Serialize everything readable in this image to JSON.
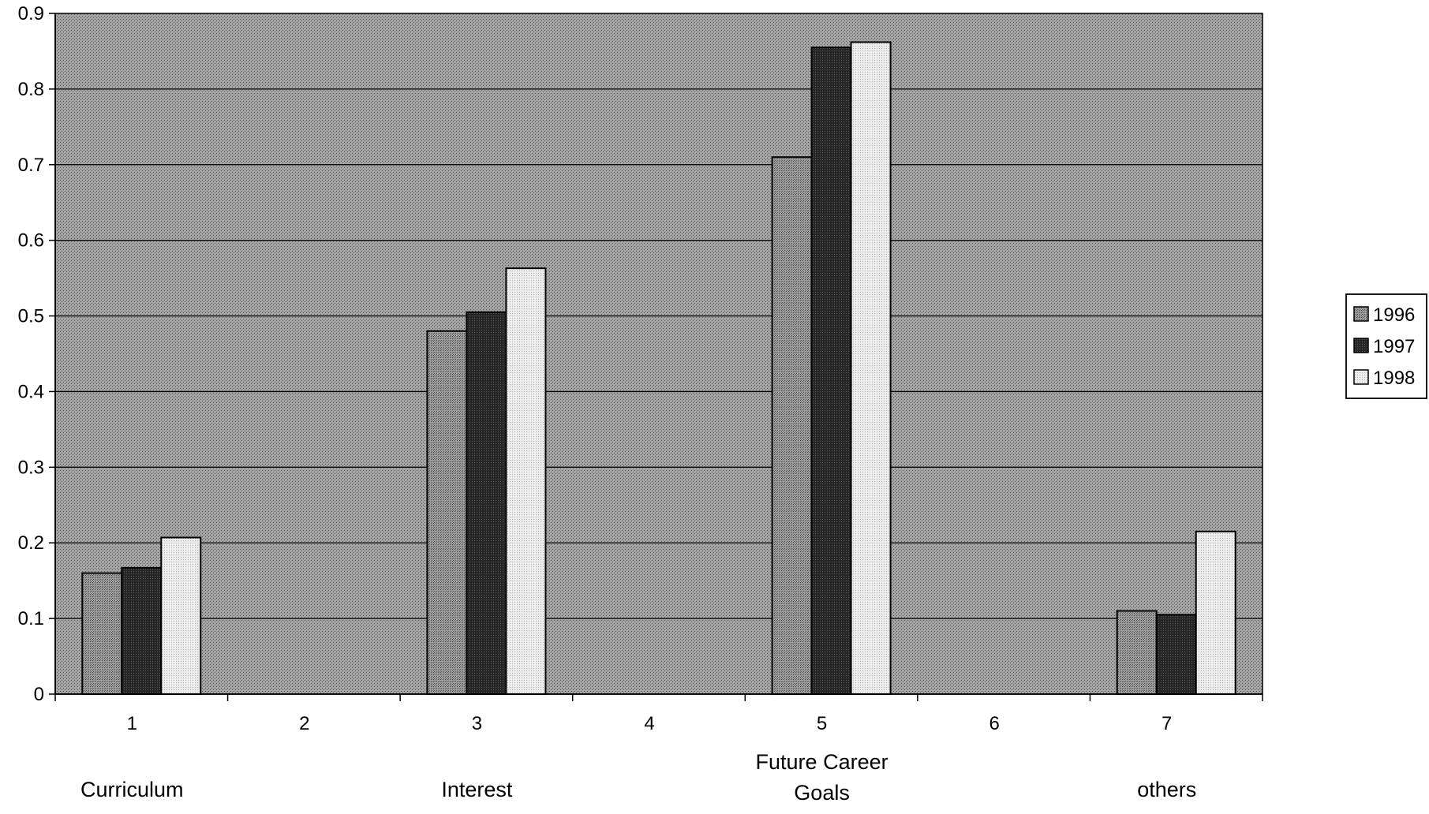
{
  "chart_data": {
    "type": "bar",
    "title": "",
    "xlabel": "",
    "ylabel": "",
    "categories": [
      "1",
      "2",
      "3",
      "4",
      "5",
      "6",
      "7"
    ],
    "category_labels": [
      "Curriculum",
      "",
      "Interest",
      "",
      "Future  Career\nGoals",
      "",
      "others"
    ],
    "ylim": [
      0,
      0.9
    ],
    "yticks": [
      "0",
      "0.1",
      "0.2",
      "0.3",
      "0.4",
      "0.5",
      "0.6",
      "0.7",
      "0.8",
      "0.9"
    ],
    "grid": true,
    "legend_position": "right",
    "series": [
      {
        "name": "1996",
        "values": [
          0.16,
          null,
          0.48,
          null,
          0.71,
          null,
          0.11
        ]
      },
      {
        "name": "1997",
        "values": [
          0.167,
          null,
          0.505,
          null,
          0.855,
          null,
          0.105
        ]
      },
      {
        "name": "1998",
        "values": [
          0.207,
          null,
          0.563,
          null,
          0.862,
          null,
          0.215
        ]
      }
    ],
    "colors": {
      "plot_background": "#9a9a9a",
      "series": [
        "#8a8a8a",
        "#2b2b2b",
        "#e2e2e2"
      ]
    }
  }
}
